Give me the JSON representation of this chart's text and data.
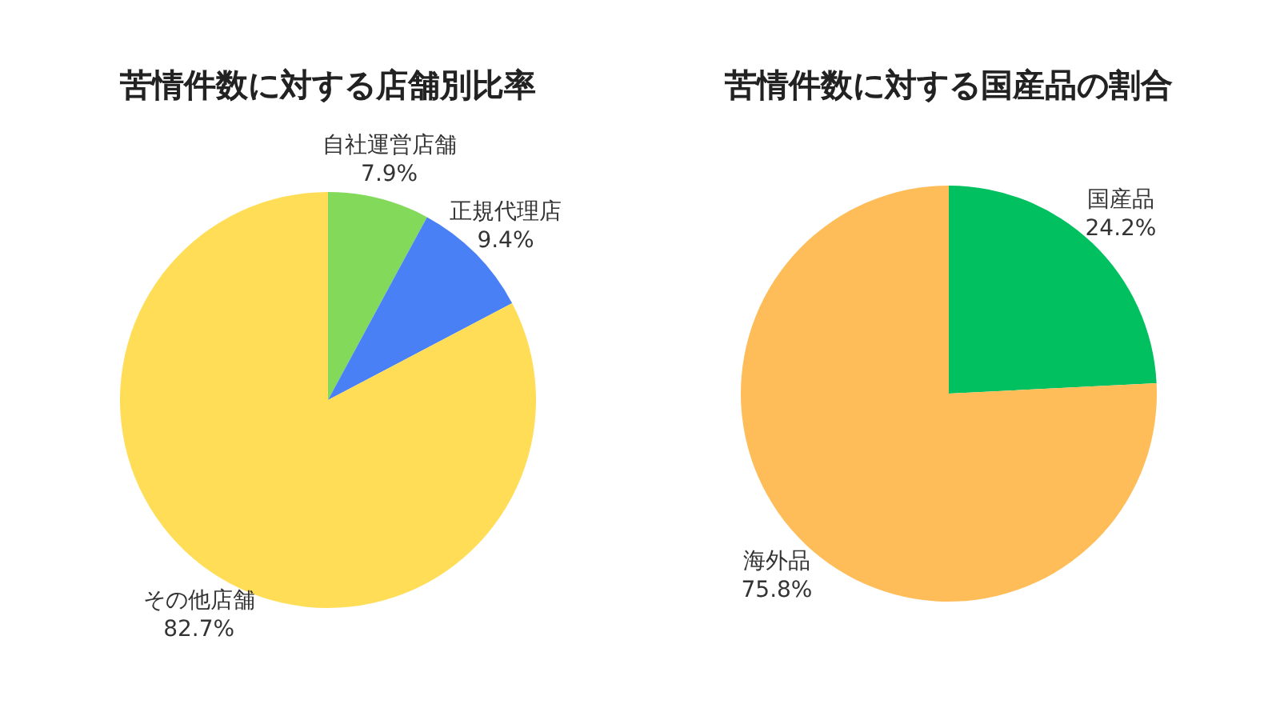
{
  "chart_data": [
    {
      "type": "pie",
      "title": "苦情件数に対する店舗別比率",
      "categories": [
        "自社運営店舗",
        "正規代理店",
        "その他店舗"
      ],
      "values": [
        7.9,
        9.4,
        82.7
      ],
      "colors": [
        "#82d95a",
        "#4a80f5",
        "#ffdd57"
      ],
      "value_labels": [
        "7.9%",
        "9.4%",
        "82.7%"
      ]
    },
    {
      "type": "pie",
      "title": "苦情件数に対する国産品の割合",
      "categories": [
        "国産品",
        "海外品"
      ],
      "values": [
        24.2,
        75.8
      ],
      "colors": [
        "#00c060",
        "#ffbd59"
      ],
      "value_labels": [
        "24.2%",
        "75.8%"
      ]
    }
  ]
}
